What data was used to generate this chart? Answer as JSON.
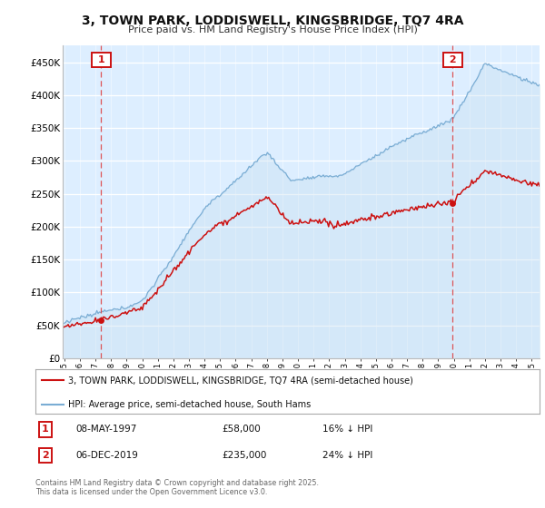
{
  "title": "3, TOWN PARK, LODDISWELL, KINGSBRIDGE, TQ7 4RA",
  "subtitle": "Price paid vs. HM Land Registry's House Price Index (HPI)",
  "legend_line1": "3, TOWN PARK, LODDISWELL, KINGSBRIDGE, TQ7 4RA (semi-detached house)",
  "legend_line2": "HPI: Average price, semi-detached house, South Hams",
  "footer": "Contains HM Land Registry data © Crown copyright and database right 2025.\nThis data is licensed under the Open Government Licence v3.0.",
  "hpi_color": "#7aadd4",
  "hpi_fill_color": "#c5ddf0",
  "price_color": "#cc1111",
  "vline_color": "#dd4444",
  "background_color": "#ddeeff",
  "sale1_date": "08-MAY-1997",
  "sale1_price": 58000,
  "sale1_year": 1997.37,
  "sale1_label": "1",
  "sale1_note": "16% ↓ HPI",
  "sale2_date": "06-DEC-2019",
  "sale2_price": 235000,
  "sale2_year": 2019.92,
  "sale2_label": "2",
  "sale2_note": "24% ↓ HPI",
  "ylim": [
    0,
    475000
  ],
  "yticks": [
    0,
    50000,
    100000,
    150000,
    200000,
    250000,
    300000,
    350000,
    400000,
    450000
  ],
  "x_start_year": 1995,
  "x_end_year": 2025
}
